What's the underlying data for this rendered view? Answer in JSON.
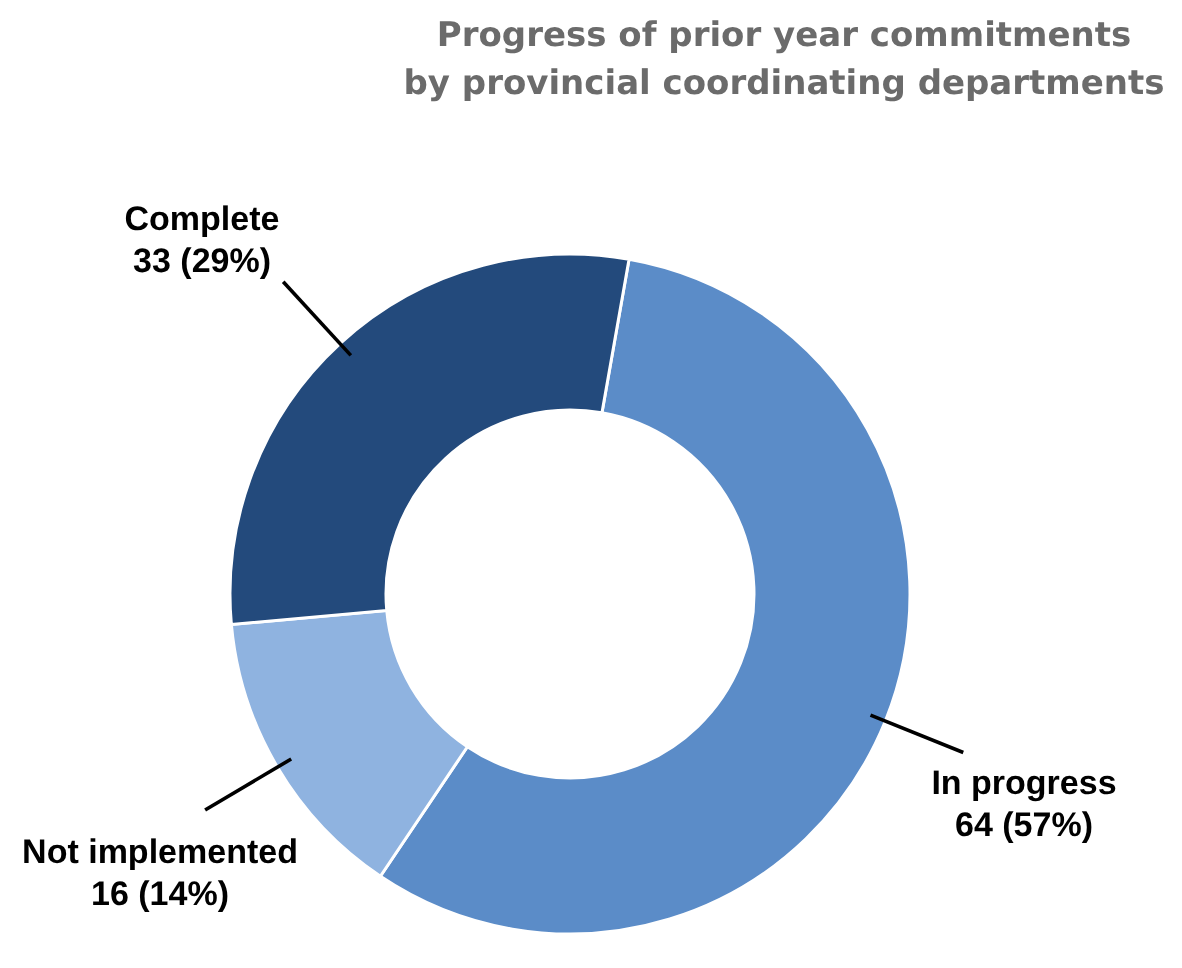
{
  "chart_data": {
    "type": "donut",
    "title": "Progress of prior year commitments\nby provincial coordinating departments",
    "categories": [
      "In progress",
      "Not implemented",
      "Complete"
    ],
    "values": [
      64,
      16,
      33
    ],
    "value_labels": [
      "64 (57%)",
      "16 (14%)",
      "33 (29%)"
    ],
    "colors": [
      "#5b8cc8",
      "#8fb3e0",
      "#234a7c"
    ]
  }
}
